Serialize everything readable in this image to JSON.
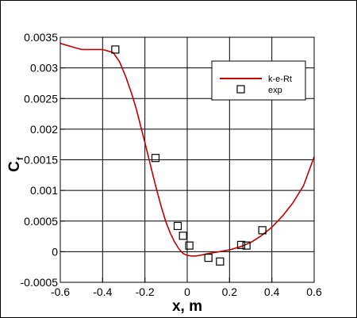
{
  "chart_data": {
    "type": "line",
    "xlabel": "x, m",
    "ylabel_main": "C",
    "ylabel_sub": "f",
    "xlim": [
      -0.6,
      0.6
    ],
    "ylim": [
      -0.0005,
      0.0035
    ],
    "x_ticks": [
      -0.6,
      -0.4,
      -0.2,
      0,
      0.2,
      0.4,
      0.6
    ],
    "x_tick_labels": [
      "-0.6",
      "-0.4",
      "-0.2",
      "0",
      "0.2",
      "0.4",
      "0.6"
    ],
    "y_ticks": [
      -0.0005,
      0,
      0.0005,
      0.001,
      0.0015,
      0.002,
      0.0025,
      0.003,
      0.0035
    ],
    "y_tick_labels": [
      "-0.0005",
      "0",
      "0.0005",
      "0.001",
      "0.0015",
      "0.002",
      "0.0025",
      "0.003",
      "0.0035"
    ],
    "grid": true,
    "legend_position": "top-right",
    "series": [
      {
        "name": "k-e-Rt",
        "kind": "line",
        "color": "#c00000",
        "x": [
          -0.6,
          -0.55,
          -0.5,
          -0.45,
          -0.4,
          -0.35,
          -0.32,
          -0.29,
          -0.26,
          -0.24,
          -0.22,
          -0.2,
          -0.18,
          -0.16,
          -0.14,
          -0.12,
          -0.1,
          -0.08,
          -0.06,
          -0.04,
          -0.02,
          0.0,
          0.02,
          0.04,
          0.06,
          0.1,
          0.15,
          0.2,
          0.25,
          0.3,
          0.35,
          0.4,
          0.45,
          0.5,
          0.55,
          0.6
        ],
        "y": [
          0.0034,
          0.00335,
          0.0033,
          0.0033,
          0.0033,
          0.00325,
          0.0031,
          0.00285,
          0.00255,
          0.00232,
          0.00205,
          0.00178,
          0.0015,
          0.00122,
          0.00095,
          0.0007,
          0.00048,
          0.0003,
          0.00016,
          5e-05,
          -3e-05,
          -6e-05,
          -7e-05,
          -7e-05,
          -6e-05,
          -3e-05,
          0.0,
          3e-05,
          8e-05,
          0.00015,
          0.00026,
          0.0004,
          0.00058,
          0.0008,
          0.00108,
          0.00155
        ]
      },
      {
        "name": "exp",
        "kind": "marker",
        "marker": "square",
        "color": "#000000",
        "x": [
          -0.34,
          -0.15,
          -0.045,
          -0.02,
          0.01,
          0.1,
          0.155,
          0.255,
          0.28,
          0.355
        ],
        "y": [
          0.0033,
          0.00153,
          0.00042,
          0.00026,
          0.0001,
          -0.0001,
          -0.00016,
          0.00011,
          0.0001,
          0.00035
        ]
      }
    ]
  }
}
